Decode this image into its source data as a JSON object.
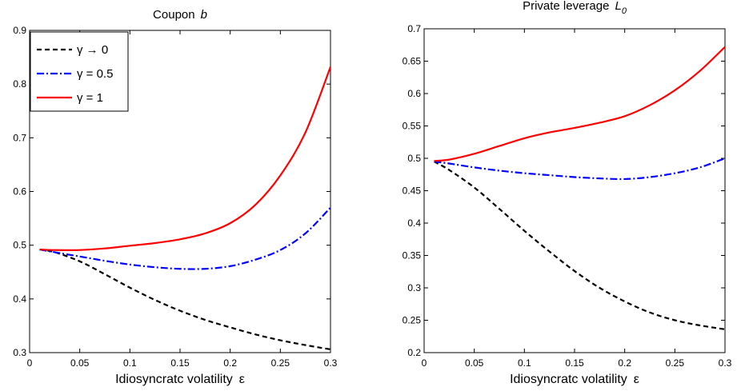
{
  "chart_data": [
    {
      "type": "line",
      "title": "Coupon",
      "title_symbol": "b",
      "xlabel": "Idiosyncratc volatility",
      "xlabel_symbol": "ε",
      "ylabel": "",
      "xlim": [
        0,
        0.3
      ],
      "ylim": [
        0.3,
        0.9
      ],
      "xticks": [
        "0",
        "0.05",
        "0.1",
        "0.15",
        "0.2",
        "0.25",
        "0.3"
      ],
      "yticks": [
        "0.3",
        "0.4",
        "0.5",
        "0.6",
        "0.7",
        "0.8",
        "0.9"
      ],
      "grid": false,
      "legend_position": "top-left",
      "x": [
        0.01,
        0.025,
        0.05,
        0.075,
        0.1,
        0.125,
        0.15,
        0.175,
        0.2,
        0.225,
        0.25,
        0.275,
        0.3
      ],
      "series": [
        {
          "name": "γ → 0",
          "style": "dashed",
          "color": "#000000",
          "values": [
            0.492,
            0.487,
            0.47,
            0.446,
            0.421,
            0.398,
            0.378,
            0.361,
            0.347,
            0.334,
            0.323,
            0.314,
            0.306
          ]
        },
        {
          "name": "γ = 0.5",
          "style": "dashdot",
          "color": "#0000ff",
          "values": [
            0.492,
            0.487,
            0.479,
            0.471,
            0.464,
            0.459,
            0.456,
            0.456,
            0.461,
            0.473,
            0.491,
            0.522,
            0.57
          ]
        },
        {
          "name": "γ = 1",
          "style": "solid",
          "color": "#ff0000",
          "values": [
            0.492,
            0.491,
            0.491,
            0.494,
            0.499,
            0.504,
            0.511,
            0.522,
            0.541,
            0.575,
            0.63,
            0.71,
            0.832
          ]
        }
      ]
    },
    {
      "type": "line",
      "title": "Private leverage",
      "title_symbol": "L",
      "title_subscript": "0",
      "xlabel": "Idiosyncratc volatility",
      "xlabel_symbol": "ε",
      "ylabel": "",
      "xlim": [
        0,
        0.3
      ],
      "ylim": [
        0.2,
        0.7
      ],
      "xticks": [
        "0",
        "0.05",
        "0.1",
        "0.15",
        "0.2",
        "0.25",
        "0.3"
      ],
      "yticks": [
        "0.2",
        "0.25",
        "0.3",
        "0.35",
        "0.4",
        "0.45",
        "0.5",
        "0.55",
        "0.6",
        "0.65",
        "0.7"
      ],
      "grid": false,
      "x": [
        0.01,
        0.025,
        0.05,
        0.075,
        0.1,
        0.125,
        0.15,
        0.175,
        0.2,
        0.225,
        0.25,
        0.275,
        0.3
      ],
      "series": [
        {
          "name": "γ → 0",
          "style": "dashed",
          "color": "#000000",
          "values": [
            0.495,
            0.482,
            0.455,
            0.422,
            0.388,
            0.356,
            0.326,
            0.3,
            0.279,
            0.262,
            0.25,
            0.242,
            0.236
          ]
        },
        {
          "name": "γ = 0.5",
          "style": "dashdot",
          "color": "#0000ff",
          "values": [
            0.495,
            0.492,
            0.486,
            0.481,
            0.477,
            0.474,
            0.471,
            0.469,
            0.468,
            0.471,
            0.477,
            0.486,
            0.5
          ]
        },
        {
          "name": "γ = 1",
          "style": "solid",
          "color": "#ff0000",
          "values": [
            0.496,
            0.498,
            0.507,
            0.519,
            0.531,
            0.54,
            0.547,
            0.555,
            0.565,
            0.582,
            0.605,
            0.635,
            0.672
          ]
        }
      ]
    }
  ]
}
